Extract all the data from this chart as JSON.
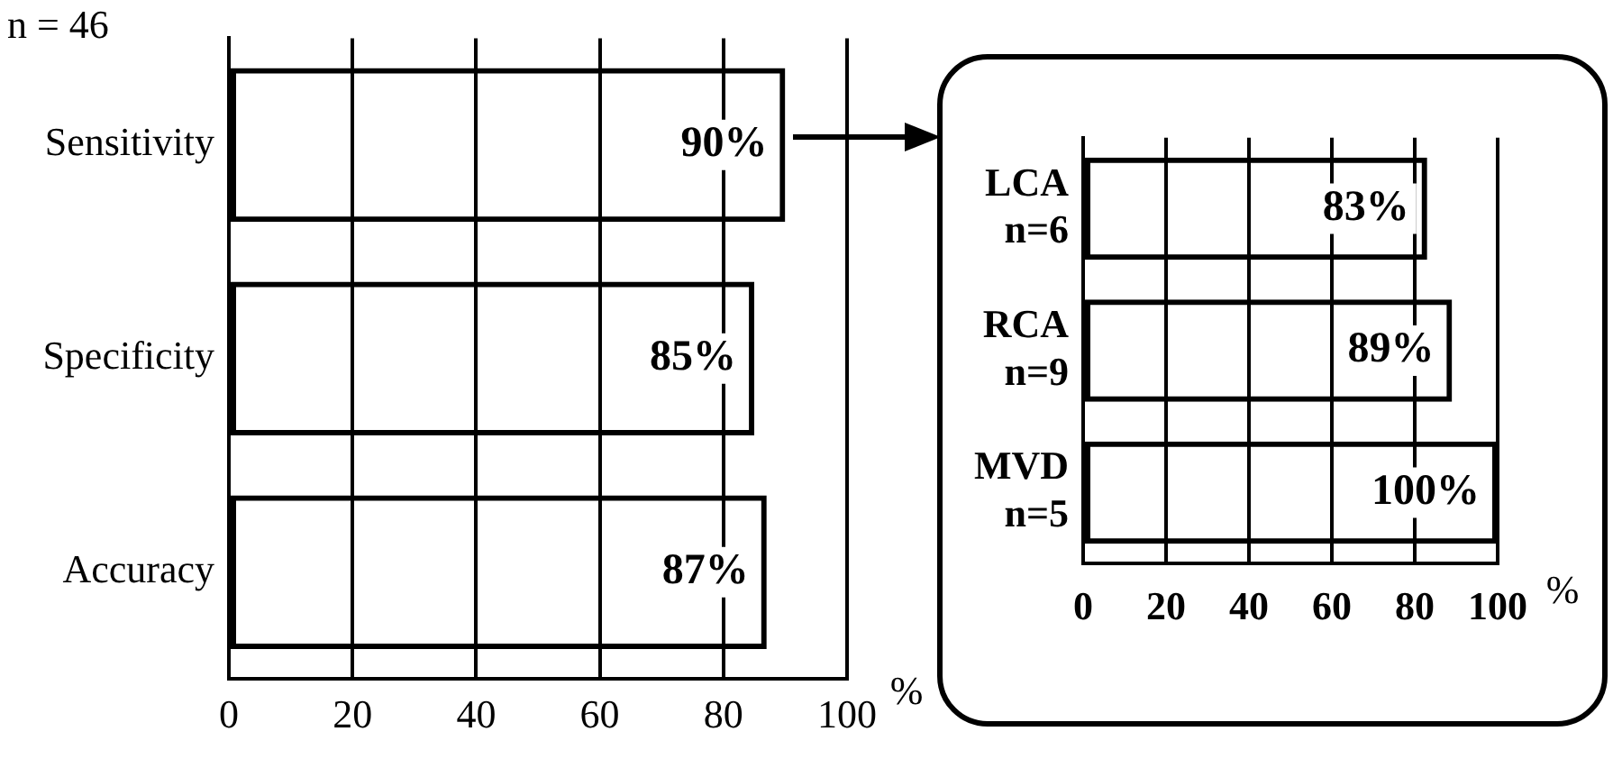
{
  "chart_data": [
    {
      "type": "bar",
      "orientation": "horizontal",
      "categories": [
        "Sensitivity",
        "Specificity",
        "Accuracy"
      ],
      "values": [
        90,
        85,
        87
      ],
      "color": "#000000",
      "value_labels": [
        "90%",
        "85%",
        "87%"
      ],
      "xlim": [
        0,
        100
      ],
      "xticks": [
        0,
        20,
        40,
        60,
        80,
        100
      ],
      "xlabel": "%",
      "grid": "x",
      "legend": false,
      "annotations": [
        "n = 46"
      ]
    },
    {
      "type": "bar",
      "orientation": "horizontal",
      "categories": [
        "LCA\nn=6",
        "RCA\nn=9",
        "MVD\nn=5"
      ],
      "values": [
        83,
        89,
        100
      ],
      "color": "#000000",
      "value_labels": [
        "83%",
        "89%",
        "100%"
      ],
      "xlim": [
        0,
        100
      ],
      "xticks": [
        0,
        20,
        40,
        60,
        80,
        100
      ],
      "xlabel": "%",
      "grid": "x",
      "legend": false
    }
  ]
}
